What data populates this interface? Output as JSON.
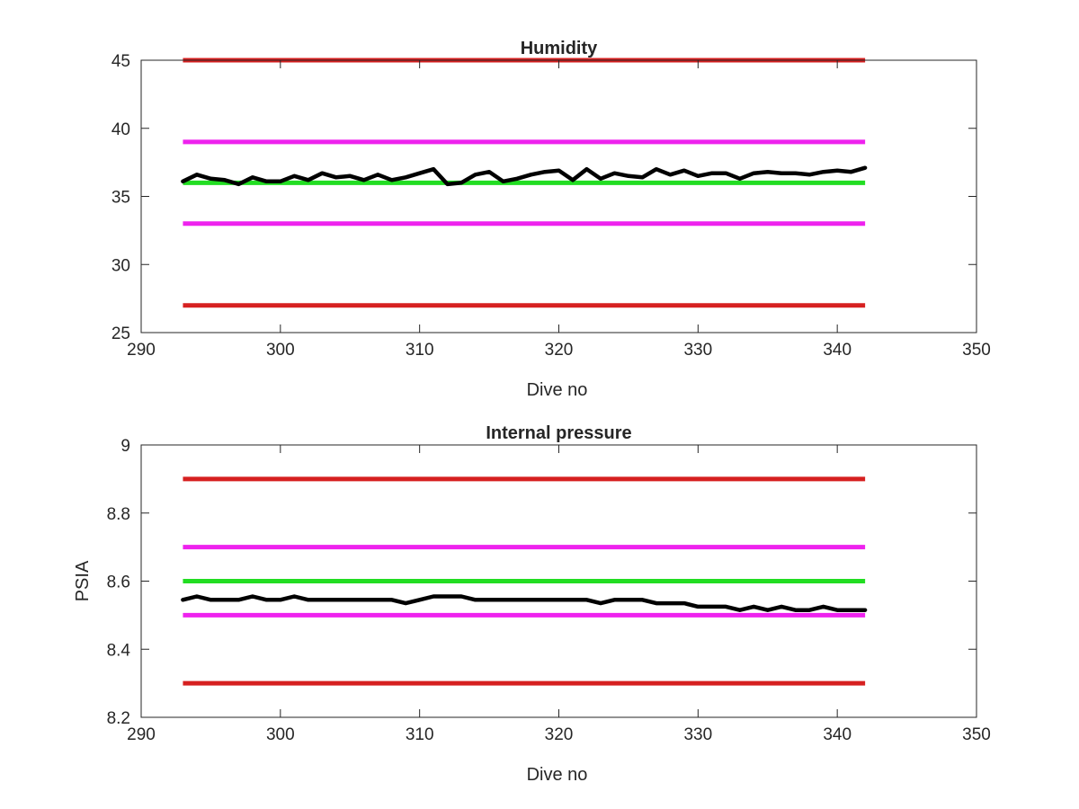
{
  "chart_data": [
    {
      "type": "line",
      "title": "Humidity",
      "xlabel": "Dive no",
      "ylabel": "",
      "xlim": [
        290,
        350
      ],
      "ylim": [
        25,
        45
      ],
      "xticks": [
        290,
        300,
        310,
        320,
        330,
        340,
        350
      ],
      "yticks": [
        25,
        30,
        35,
        40,
        45
      ],
      "grid": false,
      "legend": "none",
      "reference_lines": [
        {
          "y": 45,
          "x_range": [
            293,
            342
          ],
          "color": "#d62020"
        },
        {
          "y": 39,
          "x_range": [
            293,
            342
          ],
          "color": "#ee22ee"
        },
        {
          "y": 36,
          "x_range": [
            293,
            342
          ],
          "color": "#22dd22"
        },
        {
          "y": 33,
          "x_range": [
            293,
            342
          ],
          "color": "#ee22ee"
        },
        {
          "y": 27,
          "x_range": [
            293,
            342
          ],
          "color": "#d62020"
        }
      ],
      "series": [
        {
          "color": "#000000",
          "x": [
            293,
            294,
            295,
            296,
            297,
            298,
            299,
            300,
            301,
            302,
            303,
            304,
            305,
            306,
            307,
            308,
            309,
            310,
            311,
            312,
            313,
            314,
            315,
            316,
            317,
            318,
            319,
            320,
            321,
            322,
            323,
            324,
            325,
            326,
            327,
            328,
            329,
            330,
            331,
            332,
            333,
            334,
            335,
            336,
            337,
            338,
            339,
            340,
            341,
            342
          ],
          "values": [
            36.1,
            36.6,
            36.3,
            36.2,
            35.9,
            36.4,
            36.1,
            36.1,
            36.5,
            36.2,
            36.7,
            36.4,
            36.5,
            36.2,
            36.6,
            36.2,
            36.4,
            36.7,
            37.0,
            35.9,
            36.0,
            36.6,
            36.8,
            36.1,
            36.3,
            36.6,
            36.8,
            36.9,
            36.2,
            37.0,
            36.3,
            36.7,
            36.5,
            36.4,
            37.0,
            36.6,
            36.9,
            36.5,
            36.7,
            36.7,
            36.3,
            36.7,
            36.8,
            36.7,
            36.7,
            36.6,
            36.8,
            36.9,
            36.8,
            37.1
          ]
        }
      ]
    },
    {
      "type": "line",
      "title": "Internal pressure",
      "xlabel": "Dive no",
      "ylabel": "PSIA",
      "xlim": [
        290,
        350
      ],
      "ylim": [
        8.2,
        9.0
      ],
      "xticks": [
        290,
        300,
        310,
        320,
        330,
        340,
        350
      ],
      "yticks": [
        8.2,
        8.4,
        8.6,
        8.8,
        9
      ],
      "grid": false,
      "legend": "none",
      "reference_lines": [
        {
          "y": 8.9,
          "x_range": [
            293,
            342
          ],
          "color": "#d62020"
        },
        {
          "y": 8.7,
          "x_range": [
            293,
            342
          ],
          "color": "#ee22ee"
        },
        {
          "y": 8.6,
          "x_range": [
            293,
            342
          ],
          "color": "#22dd22"
        },
        {
          "y": 8.5,
          "x_range": [
            293,
            342
          ],
          "color": "#ee22ee"
        },
        {
          "y": 8.3,
          "x_range": [
            293,
            342
          ],
          "color": "#d62020"
        }
      ],
      "series": [
        {
          "color": "#000000",
          "x": [
            293,
            294,
            295,
            296,
            297,
            298,
            299,
            300,
            301,
            302,
            303,
            304,
            305,
            306,
            307,
            308,
            309,
            310,
            311,
            312,
            313,
            314,
            315,
            316,
            317,
            318,
            319,
            320,
            321,
            322,
            323,
            324,
            325,
            326,
            327,
            328,
            329,
            330,
            331,
            332,
            333,
            334,
            335,
            336,
            337,
            338,
            339,
            340,
            341,
            342
          ],
          "values": [
            8.545,
            8.555,
            8.545,
            8.545,
            8.545,
            8.555,
            8.545,
            8.545,
            8.555,
            8.545,
            8.545,
            8.545,
            8.545,
            8.545,
            8.545,
            8.545,
            8.535,
            8.545,
            8.555,
            8.555,
            8.555,
            8.545,
            8.545,
            8.545,
            8.545,
            8.545,
            8.545,
            8.545,
            8.545,
            8.545,
            8.535,
            8.545,
            8.545,
            8.545,
            8.535,
            8.535,
            8.535,
            8.525,
            8.525,
            8.525,
            8.515,
            8.525,
            8.515,
            8.525,
            8.515,
            8.515,
            8.525,
            8.515,
            8.515,
            8.515
          ]
        }
      ]
    }
  ]
}
